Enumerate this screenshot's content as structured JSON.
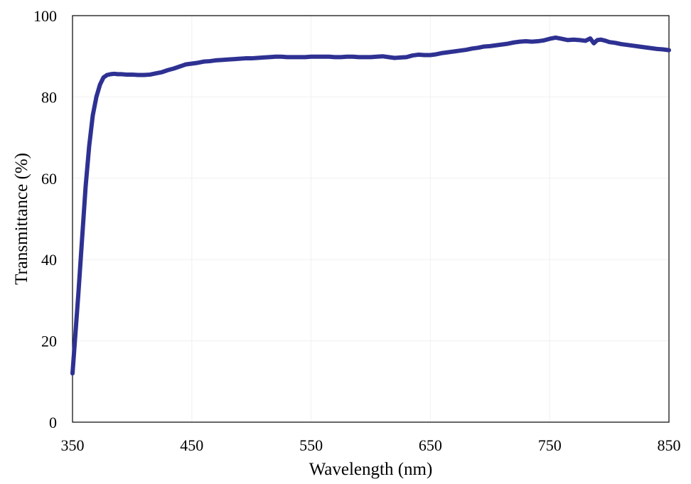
{
  "chart_data": {
    "type": "line",
    "title": "",
    "xlabel": "Wavelength  (nm)",
    "ylabel": "Transmittance  (%)",
    "xlim": [
      350,
      850
    ],
    "ylim": [
      0,
      100
    ],
    "x_ticks": [
      350,
      450,
      550,
      650,
      750,
      850
    ],
    "y_ticks": [
      0,
      20,
      40,
      60,
      80,
      100
    ],
    "x_tick_labels": [
      "350",
      "450",
      "550",
      "650",
      "750",
      "850"
    ],
    "y_tick_labels": [
      "0",
      "20",
      "40",
      "60",
      "80",
      "100"
    ],
    "grid": "vertical lines at x ticks, horizontal lines at y ticks (very faint)",
    "legend": "none",
    "line_color": "#2e3192",
    "series": [
      {
        "x": [
          350,
          352,
          355,
          358,
          361,
          364,
          367,
          370,
          373,
          376,
          379,
          382,
          385,
          388,
          391,
          395,
          400,
          405,
          410,
          415,
          420,
          425,
          430,
          435,
          440,
          445,
          450,
          455,
          460,
          465,
          470,
          475,
          480,
          485,
          490,
          495,
          500,
          505,
          510,
          515,
          520,
          525,
          530,
          535,
          540,
          545,
          550,
          555,
          560,
          565,
          570,
          575,
          580,
          585,
          590,
          595,
          600,
          605,
          610,
          615,
          620,
          625,
          630,
          635,
          640,
          645,
          650,
          655,
          660,
          665,
          670,
          675,
          680,
          685,
          690,
          695,
          700,
          705,
          710,
          715,
          720,
          725,
          730,
          735,
          740,
          745,
          750,
          755,
          760,
          765,
          770,
          775,
          780,
          784,
          787,
          790,
          793,
          797,
          800,
          805,
          810,
          815,
          820,
          825,
          830,
          835,
          840,
          845,
          850
        ],
        "y": [
          12.0,
          20.0,
          32.0,
          45.0,
          58.0,
          68.0,
          75.5,
          80.0,
          83.0,
          84.8,
          85.4,
          85.6,
          85.7,
          85.6,
          85.6,
          85.5,
          85.5,
          85.4,
          85.4,
          85.5,
          85.8,
          86.1,
          86.6,
          87.0,
          87.5,
          88.0,
          88.2,
          88.4,
          88.7,
          88.8,
          89.0,
          89.1,
          89.2,
          89.3,
          89.4,
          89.5,
          89.5,
          89.6,
          89.7,
          89.8,
          89.9,
          89.9,
          89.8,
          89.8,
          89.8,
          89.8,
          89.9,
          89.9,
          89.9,
          89.9,
          89.8,
          89.8,
          89.9,
          89.9,
          89.8,
          89.8,
          89.8,
          89.9,
          90.0,
          89.8,
          89.6,
          89.7,
          89.8,
          90.2,
          90.4,
          90.3,
          90.3,
          90.5,
          90.8,
          91.0,
          91.2,
          91.4,
          91.6,
          91.9,
          92.1,
          92.4,
          92.5,
          92.7,
          92.9,
          93.1,
          93.4,
          93.6,
          93.7,
          93.6,
          93.7,
          93.9,
          94.3,
          94.6,
          94.3,
          94.0,
          94.1,
          94.0,
          93.8,
          94.4,
          93.2,
          94.0,
          94.1,
          93.8,
          93.5,
          93.3,
          93.0,
          92.8,
          92.6,
          92.4,
          92.2,
          92.0,
          91.8,
          91.7,
          91.5
        ]
      }
    ]
  }
}
